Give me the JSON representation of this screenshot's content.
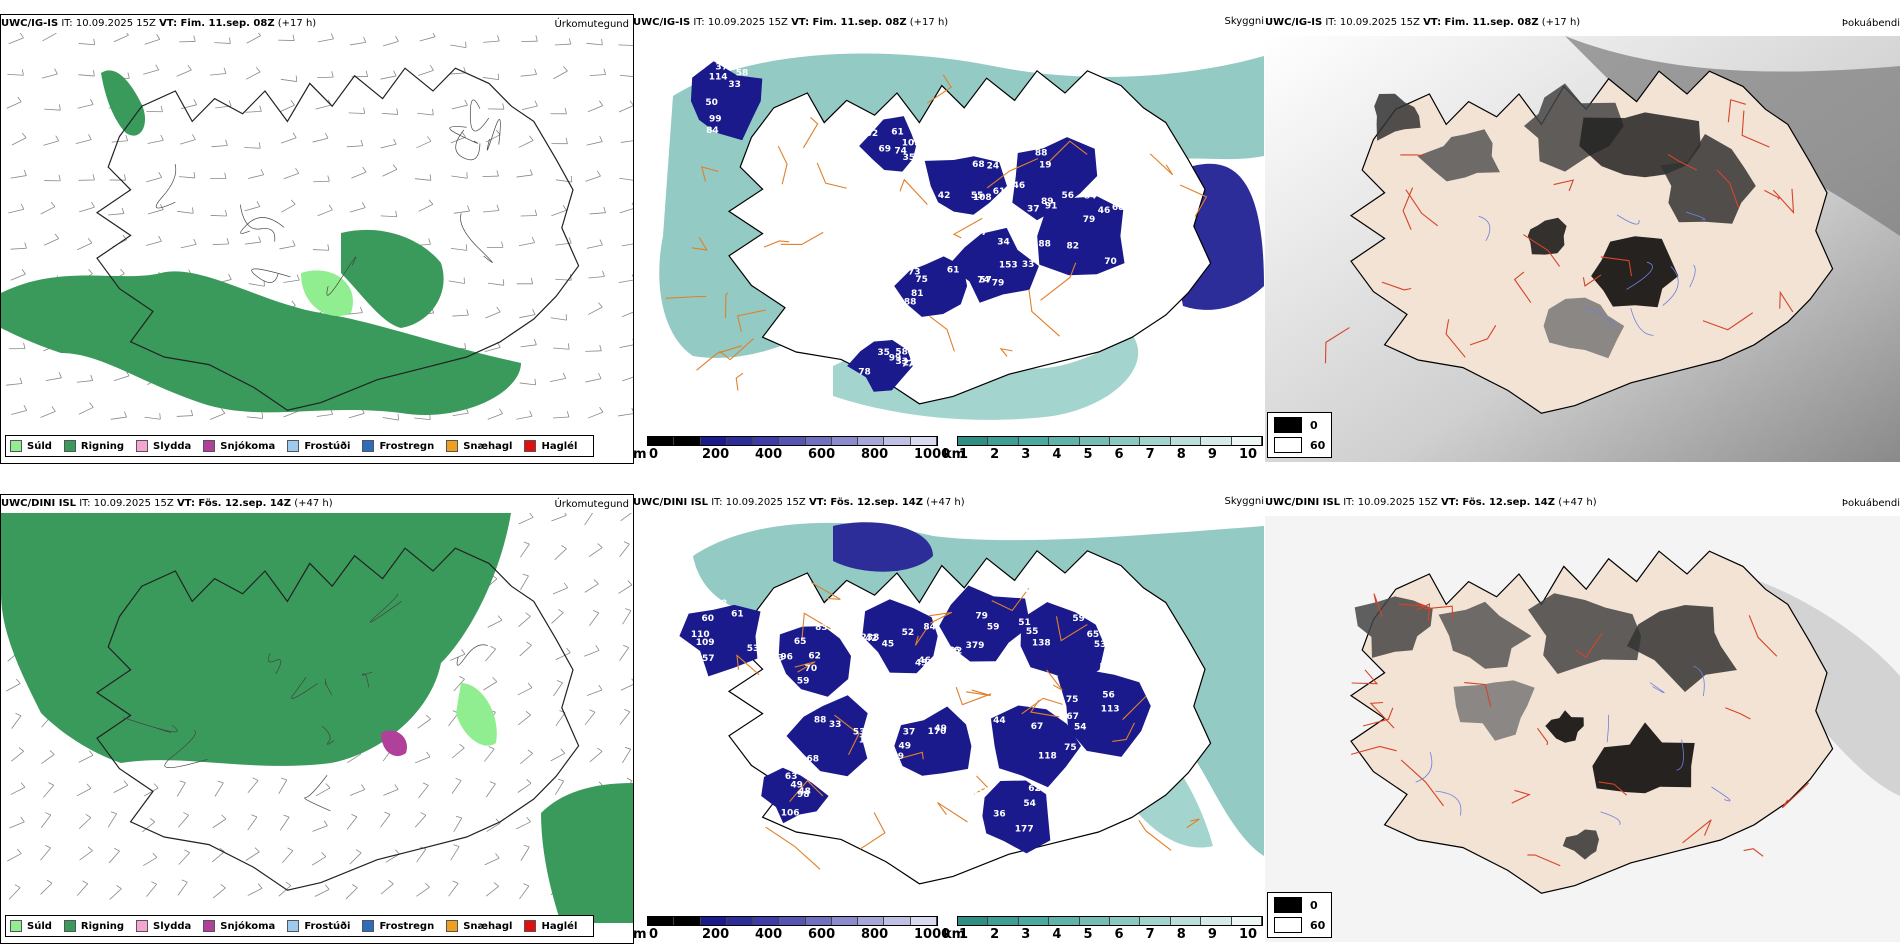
{
  "rows": [
    {
      "precip": {
        "model": "UWC/IG-IS",
        "it": "IT: 10.09.2025 15Z",
        "vt": "VT: Fim. 11.sep. 08Z",
        "lead": "(+17 h)",
        "corner": "Úrkomutegund"
      },
      "cloud": {
        "model": "UWC/IG-IS",
        "it": "IT: 10.09.2025 15Z",
        "vt": "VT: Fim. 11.sep. 08Z",
        "lead": "(+17 h)",
        "corner": "Skyggni"
      },
      "fog": {
        "model": "UWC/IG-IS",
        "it": "IT: 10.09.2025 15Z",
        "vt": "VT: Fim. 11.sep. 08Z",
        "lead": "(+17 h)",
        "corner": "Þokuábendi"
      },
      "labels": [
        "84",
        "91",
        "68",
        "84",
        "68",
        "153",
        "88",
        "35",
        "33",
        "93",
        "42",
        "56",
        "70",
        "57",
        "75",
        "77",
        "99",
        "103",
        "108",
        "88",
        "79",
        "79",
        "61",
        "58",
        "58",
        "102",
        "61",
        "91",
        "82",
        "74",
        "81",
        "78",
        "84",
        "69",
        "55",
        "46",
        "89",
        "37",
        "44",
        "33",
        "37",
        "74",
        "39",
        "37",
        "88",
        "34",
        "73",
        "99",
        "114",
        "61",
        "24",
        "19",
        "46",
        "33",
        "31",
        "22",
        "50",
        "35"
      ]
    },
    {
      "precip": {
        "model": "UWC/DINI ISL",
        "it": "IT: 10.09.2025 15Z",
        "vt": "VT: Fös. 12.sep. 14Z",
        "lead": "(+47 h)",
        "corner": "Úrkomutegund"
      },
      "cloud": {
        "model": "UWC/DINI ISL",
        "it": "IT: 10.09.2025 15Z",
        "vt": "VT: Fös. 12.sep. 14Z",
        "lead": "(+47 h)",
        "corner": "Skyggni"
      },
      "fog": {
        "model": "UWC/DINI ISL",
        "it": "IT: 10.09.2025 15Z",
        "vt": "VT: Fös. 12.sep. 14Z",
        "lead": "(+47 h)",
        "corner": "Þokuábendi"
      },
      "labels": [
        "109",
        "96",
        "238",
        "92",
        "138",
        "113",
        "75",
        "106",
        "68",
        "57",
        "54",
        "57",
        "62",
        "46",
        "56",
        "53",
        "58",
        "44",
        "49",
        "65",
        "63",
        "62",
        "60",
        "83",
        "84",
        "94",
        "65",
        "75",
        "118",
        "170",
        "129",
        "98",
        "77",
        "61",
        "59",
        "52",
        "59",
        "51",
        "56",
        "93",
        "69",
        "88",
        "106",
        "177",
        "110",
        "83",
        "45",
        "79",
        "55",
        "54",
        "67",
        "49",
        "53",
        "48",
        "36",
        "38",
        "65",
        "42",
        "379",
        "59",
        "62",
        "67",
        "37",
        "33",
        "49",
        "51",
        "53",
        "70",
        "43"
      ]
    }
  ],
  "precip_legend": [
    {
      "label": "Súld",
      "color": "#90ee90"
    },
    {
      "label": "Rigning",
      "color": "#3a9a5b"
    },
    {
      "label": "Slydda",
      "color": "#f2a6d0"
    },
    {
      "label": "Snjókoma",
      "color": "#b0409a"
    },
    {
      "label": "Frostúði",
      "color": "#9ec9f0"
    },
    {
      "label": "Frostregn",
      "color": "#2a6fb8"
    },
    {
      "label": "Snæhagl",
      "color": "#f0a020"
    },
    {
      "label": "Haglél",
      "color": "#e01010"
    }
  ],
  "cloud_legend": {
    "unit": "m",
    "ticks": [
      "0",
      "200",
      "400",
      "600",
      "800",
      "1000"
    ]
  },
  "vis_legend": {
    "unit": "km",
    "ticks": [
      "1",
      "2",
      "3",
      "4",
      "5",
      "6",
      "7",
      "8",
      "9",
      "10"
    ]
  },
  "fog_legend": [
    {
      "label": "0",
      "color": "#000000"
    },
    {
      "label": "60",
      "color": "#ffffff"
    }
  ]
}
